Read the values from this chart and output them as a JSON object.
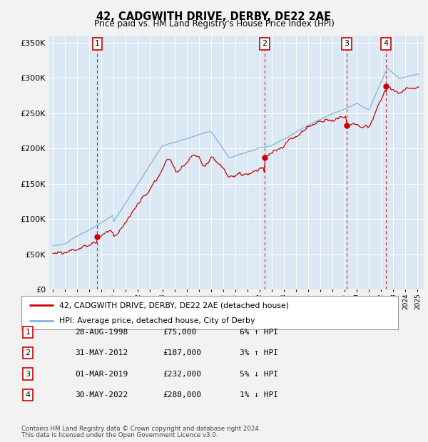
{
  "title": "42, CADGWITH DRIVE, DERBY, DE22 2AE",
  "subtitle": "Price paid vs. HM Land Registry's House Price Index (HPI)",
  "bg_color": "#dce9f5",
  "grid_color": "#ffffff",
  "fig_color": "#f2f2f2",
  "sale_color": "#cc0000",
  "hpi_color": "#7fb3e0",
  "transactions": [
    {
      "num": 1,
      "date_x": 1998.66,
      "price": 75000,
      "date_str": "28-AUG-1998",
      "price_str": "£75,000",
      "hpi_str": "6% ↑ HPI"
    },
    {
      "num": 2,
      "date_x": 2012.41,
      "price": 187000,
      "date_str": "31-MAY-2012",
      "price_str": "£187,000",
      "hpi_str": "3% ↑ HPI"
    },
    {
      "num": 3,
      "date_x": 2019.16,
      "price": 232000,
      "date_str": "01-MAR-2019",
      "price_str": "£232,000",
      "hpi_str": "5% ↓ HPI"
    },
    {
      "num": 4,
      "date_x": 2022.41,
      "price": 288000,
      "date_str": "30-MAY-2022",
      "price_str": "£288,000",
      "hpi_str": "1% ↓ HPI"
    }
  ],
  "legend_line1": "42, CADGWITH DRIVE, DERBY, DE22 2AE (detached house)",
  "legend_line2": "HPI: Average price, detached house, City of Derby",
  "footer1": "Contains HM Land Registry data © Crown copyright and database right 2024.",
  "footer2": "This data is licensed under the Open Government Licence v3.0.",
  "ylim": [
    0,
    360000
  ],
  "xlim": [
    1994.7,
    2025.5
  ]
}
